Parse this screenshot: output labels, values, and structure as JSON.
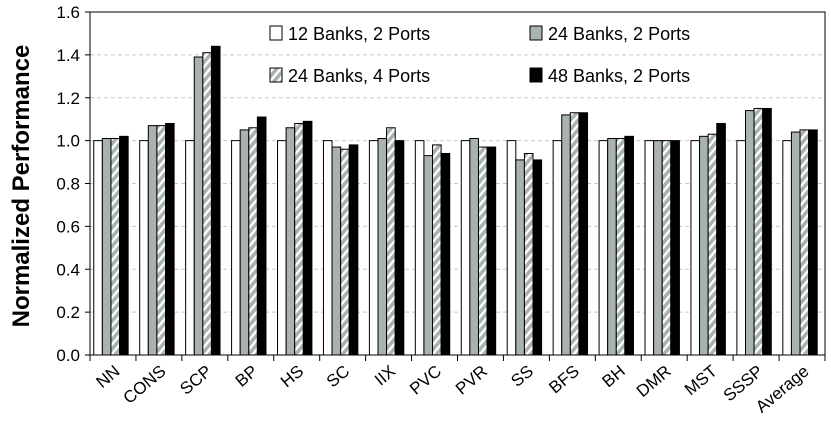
{
  "chart_data": {
    "type": "bar",
    "ylabel": "Normalized Performance",
    "xlabel": "",
    "ylim": [
      0,
      1.6
    ],
    "yticks": [
      "0.0",
      "0.2",
      "0.4",
      "0.6",
      "0.8",
      "1.0",
      "1.2",
      "1.4",
      "1.6"
    ],
    "grid": true,
    "legend_position": "top-right",
    "categories": [
      "NN",
      "CONS",
      "SCP",
      "BP",
      "HS",
      "SC",
      "IIX",
      "PVC",
      "PVR",
      "SS",
      "BFS",
      "BH",
      "DMR",
      "MST",
      "SSSP",
      "Average"
    ],
    "series": [
      {
        "name": "12 Banks, 2 Ports",
        "fill": "#ffffff",
        "pattern": "solid",
        "values": [
          1.0,
          1.0,
          1.0,
          1.0,
          1.0,
          1.0,
          1.0,
          1.0,
          1.0,
          1.0,
          1.0,
          1.0,
          1.0,
          1.0,
          1.0,
          1.0
        ]
      },
      {
        "name": "24 Banks, 2 Ports",
        "fill": "#a8b3b0",
        "pattern": "solid",
        "values": [
          1.01,
          1.07,
          1.39,
          1.05,
          1.06,
          0.97,
          1.01,
          0.93,
          1.01,
          0.91,
          1.12,
          1.01,
          1.0,
          1.02,
          1.14,
          1.04
        ]
      },
      {
        "name": "24 Banks, 4 Ports",
        "fill": "#a8b3b0",
        "pattern": "hatch",
        "values": [
          1.01,
          1.07,
          1.41,
          1.06,
          1.08,
          0.96,
          1.06,
          0.98,
          0.97,
          0.94,
          1.13,
          1.01,
          1.0,
          1.03,
          1.15,
          1.05
        ]
      },
      {
        "name": "48 Banks, 2 Ports",
        "fill": "#000000",
        "pattern": "solid",
        "values": [
          1.02,
          1.08,
          1.44,
          1.11,
          1.09,
          0.98,
          1.0,
          0.94,
          0.97,
          0.91,
          1.13,
          1.02,
          1.0,
          1.08,
          1.15,
          1.05
        ]
      }
    ]
  }
}
